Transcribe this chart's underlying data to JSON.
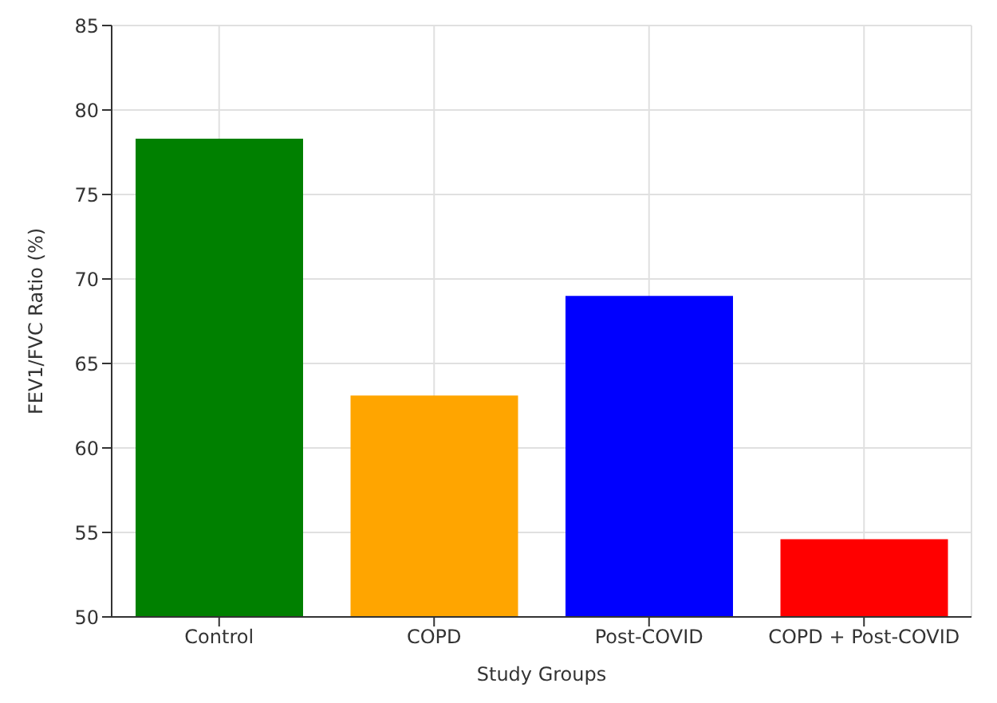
{
  "chart_data": {
    "type": "bar",
    "xlabel": "Study Groups",
    "ylabel": "FEV1/FVC Ratio (%)",
    "categories": [
      "Control",
      "COPD",
      "Post-COVID",
      "COPD + Post-COVID"
    ],
    "values": [
      78.3,
      63.1,
      69.0,
      54.6
    ],
    "colors": [
      "#008000",
      "#ffa500",
      "#0000ff",
      "#ff0000"
    ],
    "ylim": [
      50,
      85
    ],
    "yticks": [
      50,
      55,
      60,
      65,
      70,
      75,
      80,
      85
    ],
    "grid": true
  }
}
